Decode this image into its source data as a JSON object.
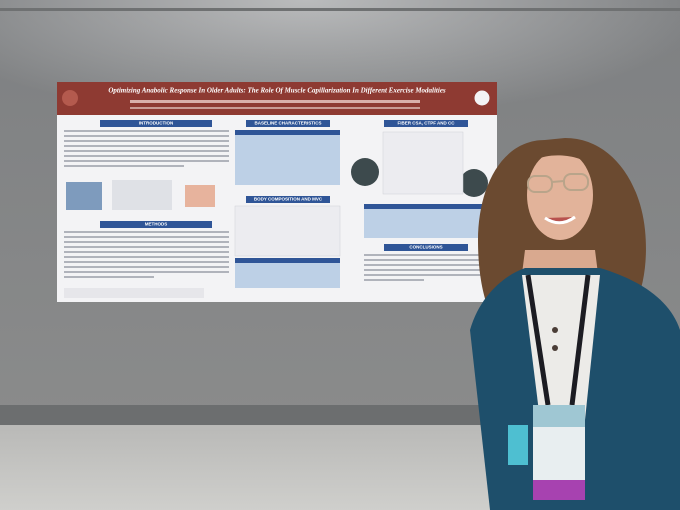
{
  "poster": {
    "title": "Optimizing Anabolic Response In Older Adults: The Role Of Muscle Capillarization In Different Exercise Modalities",
    "sections": {
      "introduction": "INTRODUCTION",
      "methods": "METHODS",
      "baseline": "BASELINE CHARACTERISTICS",
      "fiber": "FIBER CSA, CTPF AND CC",
      "body": "BODY COMPOSITION AND MVC",
      "conclusions": "CONCLUSIONS"
    }
  }
}
